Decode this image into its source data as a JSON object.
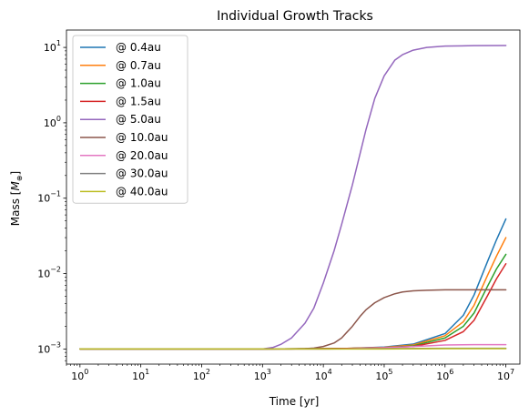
{
  "chart_data": {
    "type": "line",
    "title": "Individual Growth Tracks",
    "xlabel": "Time [yr]",
    "ylabel_prefix": "Mass [",
    "ylabel_symbol": "M",
    "ylabel_subscript": "⊕",
    "ylabel_suffix": "]",
    "xscale": "log",
    "yscale": "log",
    "xlim": [
      0.6,
      17000000
    ],
    "ylim": [
      0.00063,
      17
    ],
    "grid": false,
    "legend_position": "top-left",
    "x_ticks": [
      {
        "value": 1,
        "mantissa": "10",
        "exp": "0"
      },
      {
        "value": 10,
        "mantissa": "10",
        "exp": "1"
      },
      {
        "value": 100,
        "mantissa": "10",
        "exp": "2"
      },
      {
        "value": 1000,
        "mantissa": "10",
        "exp": "3"
      },
      {
        "value": 10000,
        "mantissa": "10",
        "exp": "4"
      },
      {
        "value": 100000,
        "mantissa": "10",
        "exp": "5"
      },
      {
        "value": 1000000,
        "mantissa": "10",
        "exp": "6"
      },
      {
        "value": 10000000,
        "mantissa": "10",
        "exp": "7"
      }
    ],
    "y_ticks": [
      {
        "value": 0.001,
        "mantissa": "10",
        "exp": "−3"
      },
      {
        "value": 0.01,
        "mantissa": "10",
        "exp": "−2"
      },
      {
        "value": 0.1,
        "mantissa": "10",
        "exp": "−1"
      },
      {
        "value": 1,
        "mantissa": "10",
        "exp": "0"
      },
      {
        "value": 10,
        "mantissa": "10",
        "exp": "1"
      }
    ],
    "series": [
      {
        "name": "@ 0.4au",
        "color": "#1f77b4",
        "x": [
          1,
          100,
          1000,
          10000,
          30000,
          100000,
          300000,
          1000000,
          2000000,
          3000000,
          5000000,
          7000000,
          10000000
        ],
        "y": [
          0.001,
          0.001,
          0.001,
          0.00101,
          0.00102,
          0.00106,
          0.00116,
          0.0016,
          0.0028,
          0.0052,
          0.0145,
          0.028,
          0.053
        ]
      },
      {
        "name": "@ 0.7au",
        "color": "#ff7f0e",
        "x": [
          1,
          100,
          1000,
          10000,
          30000,
          100000,
          300000,
          1000000,
          2000000,
          3000000,
          5000000,
          7000000,
          10000000
        ],
        "y": [
          0.001,
          0.001,
          0.001,
          0.00101,
          0.00102,
          0.00105,
          0.00113,
          0.0015,
          0.0023,
          0.0038,
          0.0095,
          0.017,
          0.03
        ]
      },
      {
        "name": "@ 1.0au",
        "color": "#2ca02c",
        "x": [
          1,
          100,
          1000,
          10000,
          30000,
          100000,
          300000,
          1000000,
          2000000,
          3000000,
          5000000,
          7000000,
          10000000
        ],
        "y": [
          0.001,
          0.001,
          0.001,
          0.00101,
          0.00102,
          0.00104,
          0.0011,
          0.0014,
          0.002,
          0.003,
          0.0068,
          0.0115,
          0.018
        ]
      },
      {
        "name": "@ 1.5au",
        "color": "#d62728",
        "x": [
          1,
          100,
          1000,
          10000,
          30000,
          100000,
          300000,
          1000000,
          2000000,
          3000000,
          5000000,
          7000000,
          10000000
        ],
        "y": [
          0.001,
          0.001,
          0.001,
          0.00101,
          0.00102,
          0.00104,
          0.00108,
          0.0013,
          0.0017,
          0.0024,
          0.0051,
          0.0085,
          0.0135
        ]
      },
      {
        "name": "@ 5.0au",
        "color": "#9467bd",
        "x": [
          1,
          100,
          1000,
          1500,
          2000,
          3000,
          5000,
          7000,
          10000,
          15000,
          20000,
          30000,
          50000,
          70000,
          100000,
          150000,
          200000,
          300000,
          500000,
          1000000,
          3000000,
          10000000
        ],
        "y": [
          0.001,
          0.001,
          0.001,
          0.00105,
          0.00115,
          0.0014,
          0.0022,
          0.0035,
          0.0075,
          0.02,
          0.045,
          0.15,
          0.8,
          2.1,
          4.2,
          6.8,
          8.0,
          9.2,
          10.0,
          10.4,
          10.55,
          10.6
        ]
      },
      {
        "name": "@ 10.0au",
        "color": "#8c564b",
        "x": [
          1,
          100,
          1000,
          2000,
          3000,
          5000,
          7000,
          10000,
          15000,
          20000,
          30000,
          40000,
          50000,
          70000,
          100000,
          150000,
          200000,
          300000,
          500000,
          1000000,
          3000000,
          10000000
        ],
        "y": [
          0.001,
          0.001,
          0.001,
          0.001,
          0.001,
          0.00101,
          0.00103,
          0.00108,
          0.0012,
          0.0014,
          0.002,
          0.0027,
          0.0033,
          0.0041,
          0.0048,
          0.0054,
          0.0057,
          0.0059,
          0.006,
          0.0061,
          0.0061,
          0.0061
        ]
      },
      {
        "name": "@ 20.0au",
        "color": "#e377c2",
        "x": [
          1,
          1000,
          5000,
          10000,
          30000,
          50000,
          100000,
          200000,
          300000,
          500000,
          1000000,
          3000000,
          10000000
        ],
        "y": [
          0.001,
          0.001,
          0.001,
          0.001,
          0.00101,
          0.00102,
          0.00104,
          0.00106,
          0.00108,
          0.0011,
          0.00113,
          0.00114,
          0.00114
        ]
      },
      {
        "name": "@ 30.0au",
        "color": "#7f7f7f",
        "x": [
          1,
          10000,
          100000,
          1000000,
          10000000
        ],
        "y": [
          0.001,
          0.001,
          0.00101,
          0.00102,
          0.00102
        ]
      },
      {
        "name": "@ 40.0au",
        "color": "#bcbd22",
        "x": [
          1,
          10000,
          100000,
          1000000,
          10000000
        ],
        "y": [
          0.001,
          0.001,
          0.001,
          0.00101,
          0.00101
        ]
      }
    ]
  }
}
